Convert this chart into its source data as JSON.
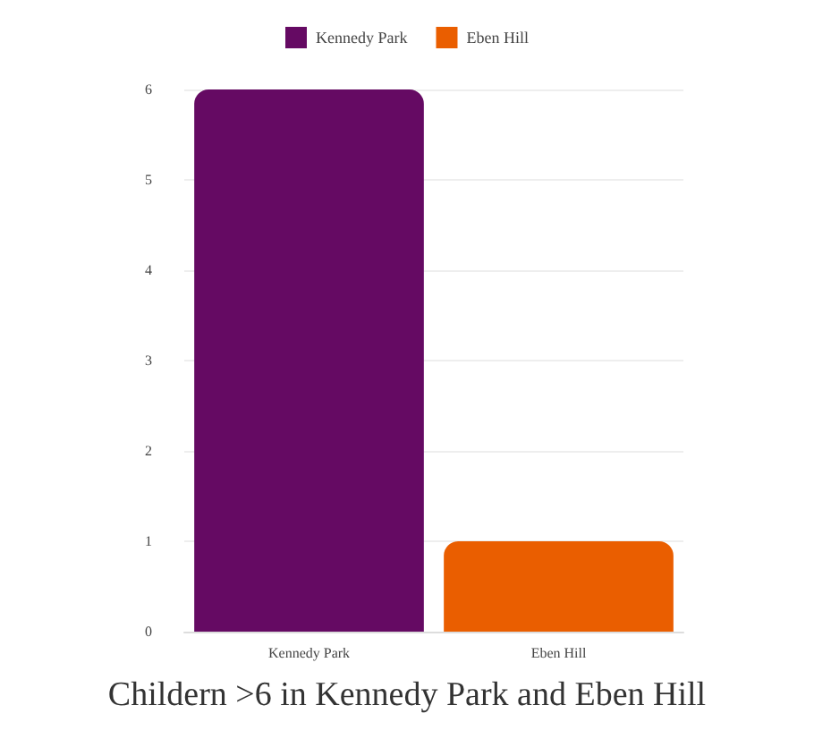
{
  "chart_data": {
    "type": "bar",
    "title": "Childern >6 in Kennedy Park and Eben Hill",
    "categories": [
      "Kennedy Park",
      "Eben Hill"
    ],
    "series": [
      {
        "name": "Kennedy Park",
        "color": "#650a63",
        "values": [
          6,
          null
        ]
      },
      {
        "name": "Eben Hill",
        "color": "#ea5e00",
        "values": [
          null,
          1
        ]
      }
    ],
    "stacked": true,
    "ylim": [
      0,
      6
    ],
    "yticks": [
      0,
      1,
      2,
      3,
      4,
      5,
      6
    ],
    "grid": "y",
    "legend": "top"
  }
}
